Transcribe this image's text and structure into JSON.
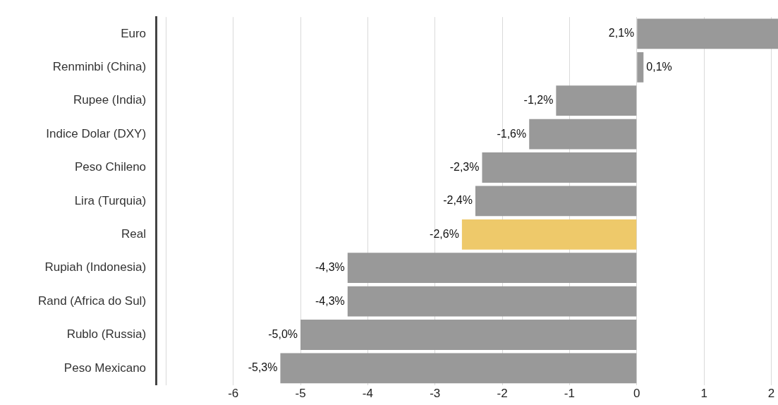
{
  "chart_data": {
    "type": "bar",
    "orientation": "horizontal",
    "categories": [
      "Euro",
      "Renminbi (China)",
      "Rupee (India)",
      "Indice Dolar (DXY)",
      "Peso Chileno",
      "Lira (Turquia)",
      "Real",
      "Rupiah (Indonesia)",
      "Rand (Africa do Sul)",
      "Rublo (Russia)",
      "Peso Mexicano"
    ],
    "values": [
      2.1,
      0.1,
      -1.2,
      -1.6,
      -2.3,
      -2.4,
      -2.6,
      -4.3,
      -4.3,
      -5.0,
      -5.3
    ],
    "colors": [
      "#999999",
      "#999999",
      "#999999",
      "#999999",
      "#999999",
      "#999999",
      "#eec96a",
      "#999999",
      "#999999",
      "#999999",
      "#999999"
    ],
    "value_labels": [
      "2,1%",
      "0,1%",
      "-1,2%",
      "-1,6%",
      "-2,3%",
      "-2,4%",
      "-2,6%",
      "-4,3%",
      "-4,3%",
      "-5,0%",
      "-5,3%"
    ],
    "xlim": [
      -7.15,
      2.1
    ],
    "xticks": [
      {
        "value": -7,
        "label": null
      },
      -6,
      -5,
      -4,
      -3,
      -2,
      -1,
      0,
      1,
      2
    ],
    "grid": "x",
    "legend": false
  }
}
